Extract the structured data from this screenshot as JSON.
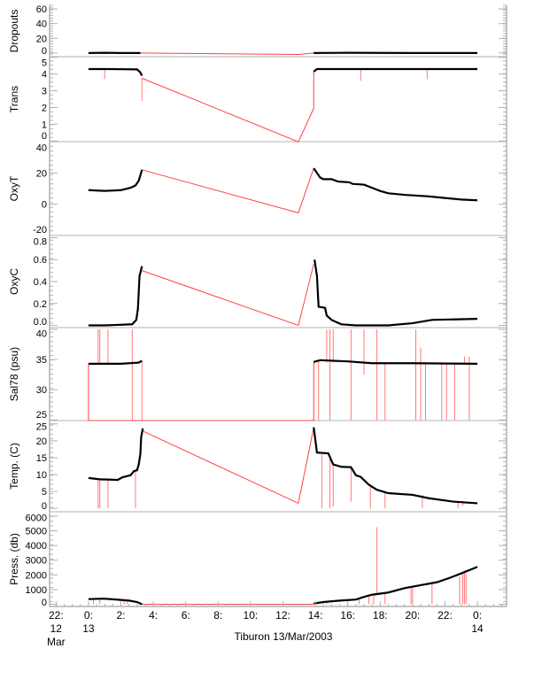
{
  "chart_data": {
    "type": "line",
    "title": "",
    "xlabel": "Tiburon 13/Mar/2003",
    "xlim": [
      -2.4,
      25.8
    ],
    "x_ticks": [
      {
        "t": -2,
        "l1": "22:",
        "l2": "12",
        "l3": "Mar"
      },
      {
        "t": 0,
        "l1": "0:",
        "l2": "13",
        "l3": ""
      },
      {
        "t": 2,
        "l1": "2:",
        "l2": "",
        "l3": ""
      },
      {
        "t": 4,
        "l1": "4:",
        "l2": "",
        "l3": ""
      },
      {
        "t": 6,
        "l1": "6:",
        "l2": "",
        "l3": ""
      },
      {
        "t": 8,
        "l1": "8:",
        "l2": "",
        "l3": ""
      },
      {
        "t": 10,
        "l1": "10:",
        "l2": "",
        "l3": ""
      },
      {
        "t": 12,
        "l1": "12:",
        "l2": "",
        "l3": ""
      },
      {
        "t": 14,
        "l1": "14:",
        "l2": "",
        "l3": ""
      },
      {
        "t": 16,
        "l1": "16:",
        "l2": "",
        "l3": ""
      },
      {
        "t": 18,
        "l1": "18:",
        "l2": "",
        "l3": ""
      },
      {
        "t": 20,
        "l1": "20:",
        "l2": "",
        "l3": ""
      },
      {
        "t": 22,
        "l1": "22:",
        "l2": "",
        "l3": ""
      },
      {
        "t": 24,
        "l1": "0:",
        "l2": "14",
        "l3": ""
      }
    ],
    "colors": {
      "data": "#000000",
      "interp": "#ff4040",
      "axis": "#b0b0b0"
    },
    "panels": [
      {
        "ylabel": "Dropouts",
        "ylim": [
          -5,
          65
        ],
        "ticks": [
          0,
          20,
          40,
          60
        ],
        "tick_labels": [
          "0",
          "20",
          "40",
          "60"
        ],
        "black": [
          [
            [
              0,
              0
            ],
            [
              1,
              0.3
            ],
            [
              2,
              0
            ],
            [
              3.2,
              0
            ]
          ],
          [
            [
              13.9,
              0
            ],
            [
              16,
              0.3
            ],
            [
              20,
              0
            ],
            [
              24,
              0
            ]
          ]
        ],
        "red": [
          [
            3.2,
            0
          ],
          [
            12.95,
            -2
          ],
          [
            13.9,
            0
          ]
        ],
        "spikes": []
      },
      {
        "ylabel": "Trans",
        "ylim": [
          -0.04,
          5.04
        ],
        "ticks": [
          0,
          1,
          2,
          3,
          4,
          5
        ],
        "tick_labels": [
          "0",
          "1",
          "2",
          "3",
          "4",
          "5"
        ],
        "black": [
          [
            [
              0,
              4.3
            ],
            [
              1,
              4.3
            ],
            [
              3.0,
              4.28
            ],
            [
              3.2,
              4.1
            ],
            [
              3.3,
              3.9
            ]
          ],
          [
            [
              13.9,
              4.15
            ],
            [
              14.1,
              4.3
            ],
            [
              18,
              4.3
            ],
            [
              24,
              4.3
            ]
          ]
        ],
        "red": [
          [
            3.3,
            3.75
          ],
          [
            12.95,
            -0.05
          ],
          [
            13.9,
            1.95
          ],
          [
            13.9,
            4.2
          ]
        ],
        "spikes": [
          [
            1.0,
            4.3,
            3.7
          ],
          [
            3.3,
            3.75,
            2.4
          ],
          [
            16.8,
            4.3,
            3.6
          ],
          [
            20.9,
            4.3,
            3.7
          ]
        ]
      },
      {
        "ylabel": "OxyT",
        "ylim": [
          -20,
          40
        ],
        "ticks": [
          -20,
          0,
          20,
          40
        ],
        "tick_labels": [
          "-20",
          "0",
          "20",
          "40"
        ],
        "black": [
          [
            [
              0,
              9
            ],
            [
              1,
              8.5
            ],
            [
              2,
              9
            ],
            [
              2.6,
              10.5
            ],
            [
              2.9,
              12
            ],
            [
              3.1,
              15
            ],
            [
              3.3,
              22
            ]
          ],
          [
            [
              13.9,
              23
            ],
            [
              14.1,
              20
            ],
            [
              14.3,
              17
            ],
            [
              14.5,
              16
            ],
            [
              15.0,
              16
            ],
            [
              15.4,
              14.5
            ],
            [
              16.1,
              14
            ],
            [
              16.3,
              13
            ],
            [
              17,
              12.5
            ],
            [
              17.5,
              10.5
            ],
            [
              18,
              8.5
            ],
            [
              18.5,
              7
            ],
            [
              19.5,
              6
            ],
            [
              21,
              5
            ],
            [
              22,
              4
            ],
            [
              23,
              3
            ],
            [
              24,
              2.5
            ]
          ]
        ],
        "red": [
          [
            3.3,
            22
          ],
          [
            12.95,
            -5.5
          ],
          [
            13.9,
            23
          ]
        ],
        "spikes": []
      },
      {
        "ylabel": "OxyC",
        "ylim": [
          -0.02,
          0.82
        ],
        "ticks": [
          0,
          0.2,
          0.4,
          0.6,
          0.8
        ],
        "tick_labels": [
          "0.0",
          "0.2",
          "0.4",
          "0.6",
          "0.8"
        ],
        "black": [
          [
            [
              0,
              0
            ],
            [
              1,
              0
            ],
            [
              2.7,
              0.01
            ],
            [
              2.95,
              0.05
            ],
            [
              3.05,
              0.15
            ],
            [
              3.15,
              0.45
            ],
            [
              3.3,
              0.54
            ]
          ],
          [
            [
              13.95,
              0.6
            ],
            [
              14.1,
              0.45
            ],
            [
              14.2,
              0.17
            ],
            [
              14.6,
              0.16
            ],
            [
              14.7,
              0.09
            ],
            [
              15,
              0.05
            ],
            [
              15.6,
              0.01
            ],
            [
              16.5,
              0
            ],
            [
              18.5,
              0
            ],
            [
              20,
              0.02
            ],
            [
              21.2,
              0.05
            ],
            [
              24,
              0.06
            ]
          ]
        ],
        "red": [
          [
            3.3,
            0.5
          ],
          [
            12.95,
            0.0
          ],
          [
            13.9,
            0.56
          ]
        ],
        "spikes": []
      },
      {
        "ylabel": "Sal78 (psu)",
        "ylim": [
          24.9,
          40.3
        ],
        "ticks": [
          25,
          30,
          35,
          40
        ],
        "tick_labels": [
          "25",
          "30",
          "35",
          "40"
        ],
        "black": [
          [
            [
              0,
              34.3
            ],
            [
              2,
              34.3
            ],
            [
              3.1,
              34.5
            ],
            [
              3.3,
              34.8
            ]
          ],
          [
            [
              13.9,
              34.6
            ],
            [
              14.3,
              34.9
            ],
            [
              16,
              34.7
            ],
            [
              17.5,
              34.4
            ],
            [
              20,
              34.4
            ],
            [
              24,
              34.3
            ]
          ]
        ],
        "red": [
          [
            0,
            34.3
          ],
          [
            0,
            24.9
          ],
          [
            13.9,
            24.9
          ],
          [
            13.9,
            34.6
          ]
        ],
        "spikes": [
          [
            0.6,
            40,
            34.3
          ],
          [
            0.7,
            40,
            34.3
          ],
          [
            1.2,
            40,
            34.3
          ],
          [
            2.7,
            40,
            25
          ],
          [
            3.3,
            34.8,
            25
          ],
          [
            14.2,
            34.7,
            25
          ],
          [
            14.7,
            40,
            34.5
          ],
          [
            14.9,
            40,
            25
          ],
          [
            15.1,
            40,
            34.5
          ],
          [
            16.2,
            40,
            25
          ],
          [
            17.0,
            40,
            32.5
          ],
          [
            17.8,
            40,
            25
          ],
          [
            18.3,
            34.5,
            25
          ],
          [
            20.2,
            40,
            25
          ],
          [
            20.5,
            37,
            25
          ],
          [
            20.8,
            34.4,
            25
          ],
          [
            21.8,
            34.4,
            25
          ],
          [
            22.1,
            34.4,
            25
          ],
          [
            22.6,
            34.4,
            25
          ],
          [
            23.2,
            35.5,
            34.3
          ],
          [
            23.5,
            34.4,
            25
          ],
          [
            23.5,
            35.5,
            34.3
          ]
        ]
      },
      {
        "ylabel": "Temp. (C)",
        "ylim": [
          -1,
          26
        ],
        "ticks": [
          0,
          5,
          10,
          15,
          20,
          25
        ],
        "tick_labels": [
          "0",
          "5",
          "10",
          "15",
          "20",
          "25"
        ],
        "black": [
          [
            [
              0,
              9
            ],
            [
              0.7,
              8.6
            ],
            [
              1.4,
              8.5
            ],
            [
              1.8,
              8.4
            ],
            [
              2.1,
              9.2
            ],
            [
              2.6,
              9.8
            ],
            [
              2.8,
              11
            ],
            [
              3.0,
              11.3
            ],
            [
              3.1,
              13
            ],
            [
              3.2,
              16
            ],
            [
              3.25,
              21
            ],
            [
              3.35,
              23.7
            ]
          ],
          [
            [
              13.9,
              24
            ],
            [
              14.1,
              16.5
            ],
            [
              14.8,
              16.3
            ],
            [
              15.1,
              13
            ],
            [
              15.6,
              12.3
            ],
            [
              16.2,
              12.2
            ],
            [
              16.5,
              9.8
            ],
            [
              16.8,
              9.3
            ],
            [
              17.3,
              7
            ],
            [
              17.8,
              5.5
            ],
            [
              18.5,
              4.5
            ],
            [
              20,
              4
            ],
            [
              21,
              3
            ],
            [
              22.5,
              2
            ],
            [
              24,
              1.5
            ]
          ]
        ],
        "red": [
          [
            3.3,
            23
          ],
          [
            12.95,
            1.5
          ],
          [
            13.9,
            24
          ]
        ],
        "spikes": [
          [
            0.6,
            8.6,
            0
          ],
          [
            0.7,
            8.6,
            0
          ],
          [
            1.2,
            8.5,
            0
          ],
          [
            2.9,
            11,
            0
          ],
          [
            14.4,
            16,
            0
          ],
          [
            14.9,
            15,
            0
          ],
          [
            15.1,
            13,
            0.5
          ],
          [
            16.2,
            12,
            2
          ],
          [
            17.4,
            7,
            0
          ],
          [
            18.3,
            5,
            0
          ],
          [
            20.6,
            4,
            0
          ],
          [
            22.8,
            2,
            0
          ],
          [
            23.1,
            2,
            0.8
          ]
        ]
      },
      {
        "ylabel": "Press. (db)",
        "ylim": [
          -150,
          6300
        ],
        "ticks": [
          0,
          1000,
          2000,
          3000,
          4000,
          5000,
          6000
        ],
        "tick_labels": [
          "0",
          "1000",
          "2000",
          "3000",
          "4000",
          "5000",
          "6000"
        ],
        "black": [
          [
            [
              0,
              350
            ],
            [
              0.9,
              380
            ],
            [
              1.5,
              340
            ],
            [
              2.5,
              250
            ],
            [
              3.0,
              150
            ],
            [
              3.3,
              0
            ]
          ],
          [
            [
              13.9,
              50
            ],
            [
              14.5,
              150
            ],
            [
              15.5,
              250
            ],
            [
              16.5,
              320
            ],
            [
              17,
              500
            ],
            [
              17.5,
              650
            ],
            [
              18.5,
              800
            ],
            [
              19.5,
              1100
            ],
            [
              20.5,
              1300
            ],
            [
              21.5,
              1500
            ],
            [
              22.3,
              1800
            ],
            [
              23,
              2100
            ],
            [
              24,
              2550
            ]
          ]
        ],
        "red": [
          [
            3.3,
            0
          ],
          [
            13.9,
            0
          ]
        ],
        "spikes": [
          [
            0.3,
            350,
            0
          ],
          [
            0.7,
            380,
            0
          ],
          [
            2.2,
            280,
            0
          ],
          [
            2.4,
            260,
            0
          ],
          [
            14.7,
            150,
            0
          ],
          [
            16.7,
            400,
            0
          ],
          [
            17.3,
            600,
            0
          ],
          [
            17.6,
            650,
            0
          ],
          [
            17.8,
            5250,
            700
          ],
          [
            18.3,
            800,
            0
          ],
          [
            19.9,
            1100,
            0
          ],
          [
            20.0,
            1150,
            0
          ],
          [
            21.2,
            1500,
            0
          ],
          [
            22.9,
            1900,
            0
          ],
          [
            23.1,
            2100,
            0
          ],
          [
            23.2,
            2300,
            0
          ],
          [
            23.3,
            2100,
            0
          ]
        ]
      }
    ]
  }
}
